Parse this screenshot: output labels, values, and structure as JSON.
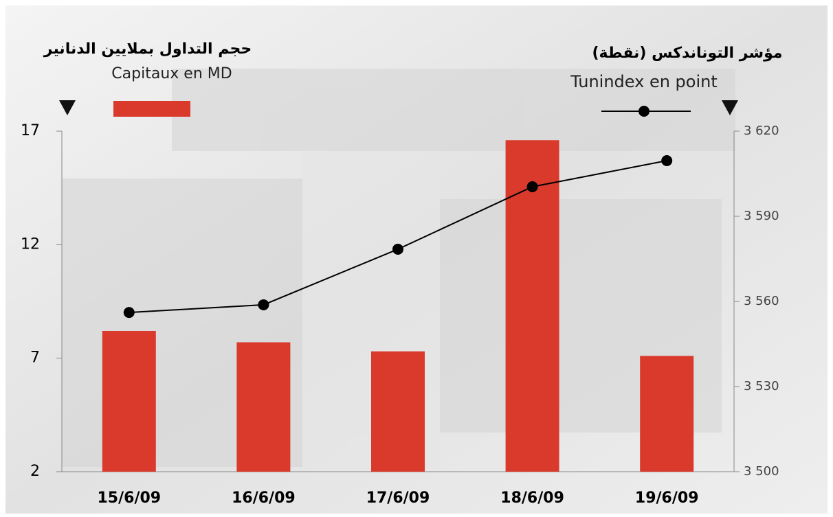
{
  "chart_data": {
    "type": "bar_line",
    "ylabel": "حجم التداول بملايين الدنانير",
    "y2label": "مؤشر التوناندكس (نقطة)",
    "categories": [
      "15/6/09",
      "16/6/09",
      "17/6/09",
      "18/6/09",
      "19/6/09"
    ],
    "series": [
      {
        "name": "Capitaux en MD",
        "type": "bar",
        "color": "#d93a2b",
        "values": [
          8.2,
          7.7,
          7.3,
          16.6,
          7.1
        ]
      },
      {
        "name": "Tunindex en point",
        "type": "line",
        "axis": "y2",
        "color": "#000000",
        "values": [
          3556.1,
          3558.8,
          3578.4,
          3600.4,
          3609.6
        ]
      }
    ],
    "ylim": [
      2,
      17
    ],
    "yticks": [
      2,
      7,
      12,
      17
    ],
    "y2lim": [
      3500,
      3620
    ],
    "y2ticks": [
      {
        "value": 3500,
        "label": "3 500"
      },
      {
        "value": 3530,
        "label": "3 530"
      },
      {
        "value": 3560,
        "label": "3 560"
      },
      {
        "value": 3590,
        "label": "3 590"
      },
      {
        "value": 3620,
        "label": "3 620"
      }
    ]
  }
}
